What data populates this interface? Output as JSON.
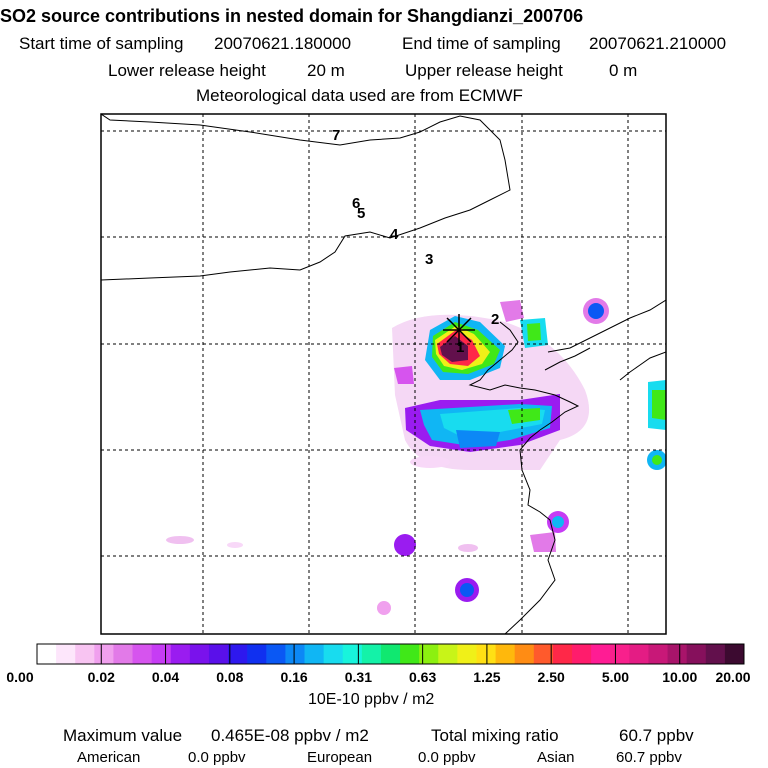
{
  "title": "SO2 source contributions in nested domain for Shangdianzi_200706",
  "sampling": {
    "start_label": "Start time of sampling",
    "start_value": "20070621.180000",
    "end_label": "End time of sampling",
    "end_value": "20070621.210000"
  },
  "release": {
    "lower_label": "Lower release height",
    "lower_value": "20 m",
    "upper_label": "Upper release height",
    "upper_value": "0 m"
  },
  "met_note": "Meteorological data used are from ECMWF",
  "map": {
    "trajectory_labels": [
      "1",
      "2",
      "3",
      "4",
      "5",
      "6",
      "7"
    ],
    "receptor_marker": "station-cross"
  },
  "colorbar": {
    "tick_labels": [
      "0.00",
      "0.02",
      "0.04",
      "0.08",
      "0.16",
      "0.31",
      "0.63",
      "1.25",
      "2.50",
      "5.00",
      "10.00",
      "20.00"
    ],
    "colors": [
      "#ffffff",
      "#fde6fb",
      "#f8c4f2",
      "#f0a0ee",
      "#e27ae8",
      "#d654ee",
      "#c63cf4",
      "#9a1cf0",
      "#7a12ec",
      "#5a10ea",
      "#2e18ee",
      "#1030f0",
      "#0a58f4",
      "#0c88f6",
      "#10b6f4",
      "#18dcef",
      "#18f4dc",
      "#14f2a8",
      "#10e870",
      "#40e818",
      "#8cf010",
      "#c8f418",
      "#f0f018",
      "#ffe014",
      "#ffb80c",
      "#ff8c14",
      "#ff5a2c",
      "#ff2848",
      "#ff1c6c",
      "#ff1c94",
      "#f8208c",
      "#e41c84",
      "#c81878",
      "#a8146a",
      "#86105c",
      "#62104c",
      "#3c0a30"
    ],
    "unit": "10E-10 ppbv / m2"
  },
  "summary": {
    "max_label": "Maximum value",
    "max_value": "0.465E-08 ppbv / m2",
    "total_label": "Total mixing ratio",
    "total_value": "60.7 ppbv",
    "american_label": "American",
    "american_value": "0.0 ppbv",
    "european_label": "European",
    "european_value": "0.0 ppbv",
    "asian_label": "Asian",
    "asian_value": "60.7 ppbv"
  }
}
